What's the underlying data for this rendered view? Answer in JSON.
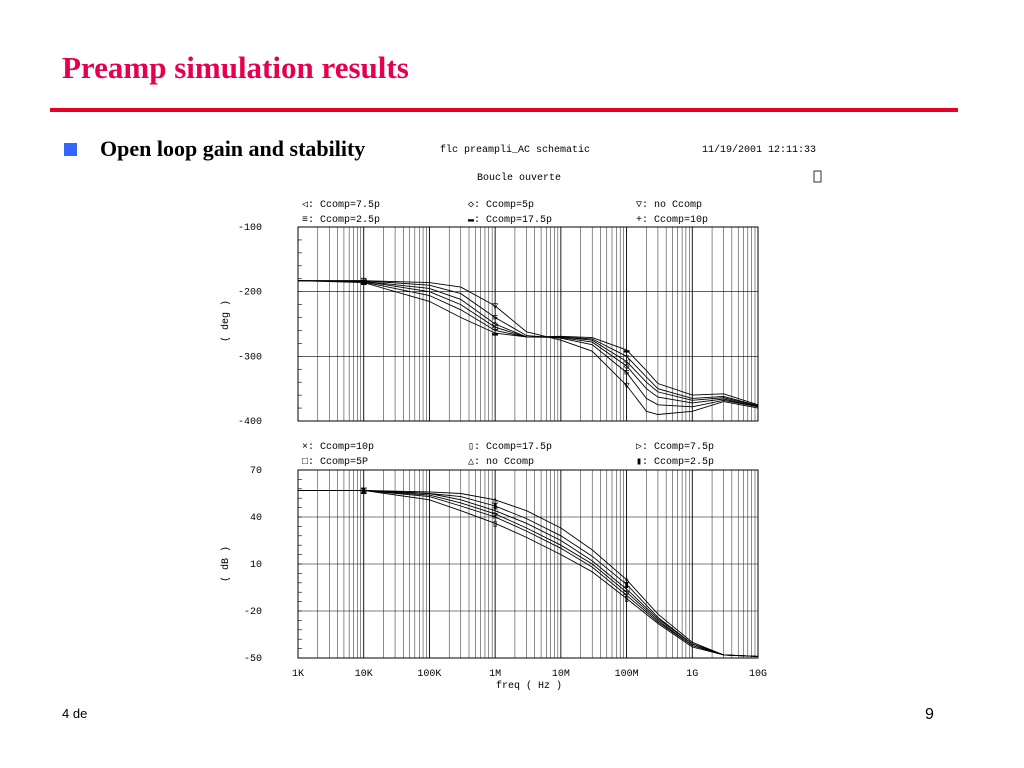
{
  "slide": {
    "title": "Preamp simulation results",
    "bullet": "Open loop gain and stability",
    "footer_left": "4 de",
    "page_number": "9"
  },
  "colors": {
    "title": "#e6004c",
    "rule": "#e60026",
    "bullet": "#3366ff"
  },
  "chart_data": [
    {
      "type": "line",
      "header_left": "flc preampli_AC schematic",
      "header_right": "11/19/2001 12:11:33",
      "subtitle": "Boucle ouverte",
      "ylabel": "( deg )",
      "xlabel": "",
      "xscale": "log",
      "xlim": [
        1000,
        10000000000
      ],
      "ylim": [
        -400,
        -100
      ],
      "yticks": [
        -100,
        -200,
        -300,
        -400
      ],
      "legend": [
        {
          "marker": "◁",
          "label": "Ccomp=7.5p"
        },
        {
          "marker": "◇",
          "label": "Ccomp=5p"
        },
        {
          "marker": "▽",
          "label": "no Ccomp"
        },
        {
          "marker": "≡",
          "label": "Ccomp=2.5p"
        },
        {
          "marker": "▬",
          "label": "Ccomp=17.5p"
        },
        {
          "marker": "+",
          "label": "Ccomp=10p"
        }
      ],
      "series": [
        {
          "name": "no Ccomp",
          "x": [
            1000,
            10000,
            100000,
            300000,
            1000000,
            3000000,
            10000000,
            30000000,
            100000000,
            200000000,
            300000000,
            1000000000,
            3000000000,
            10000000000
          ],
          "y": [
            -183,
            -183,
            -186,
            -193,
            -222,
            -262,
            -275,
            -292,
            -345,
            -385,
            -390,
            -385,
            -370,
            -380
          ]
        },
        {
          "name": "Ccomp=2.5p",
          "x": [
            1000,
            10000,
            100000,
            300000,
            1000000,
            3000000,
            10000000,
            30000000,
            100000000,
            200000000,
            300000000,
            1000000000,
            3000000000,
            10000000000
          ],
          "y": [
            -183,
            -183,
            -190,
            -203,
            -240,
            -268,
            -272,
            -282,
            -325,
            -365,
            -375,
            -378,
            -368,
            -378
          ]
        },
        {
          "name": "Ccomp=5p",
          "x": [
            1000,
            10000,
            100000,
            300000,
            1000000,
            3000000,
            10000000,
            30000000,
            100000000,
            200000000,
            300000000,
            1000000000,
            3000000000,
            10000000000
          ],
          "y": [
            -183,
            -184,
            -195,
            -212,
            -250,
            -270,
            -271,
            -278,
            -315,
            -350,
            -363,
            -372,
            -366,
            -378
          ]
        },
        {
          "name": "Ccomp=7.5p",
          "x": [
            1000,
            10000,
            100000,
            300000,
            1000000,
            3000000,
            10000000,
            30000000,
            100000000,
            200000000,
            300000000,
            1000000000,
            3000000000,
            10000000000
          ],
          "y": [
            -183,
            -184,
            -200,
            -220,
            -255,
            -270,
            -270,
            -275,
            -308,
            -340,
            -355,
            -368,
            -364,
            -377
          ]
        },
        {
          "name": "Ccomp=10p",
          "x": [
            1000,
            10000,
            100000,
            300000,
            1000000,
            3000000,
            10000000,
            30000000,
            100000000,
            200000000,
            300000000,
            1000000000,
            3000000000,
            10000000000
          ],
          "y": [
            -183,
            -185,
            -206,
            -228,
            -260,
            -270,
            -270,
            -273,
            -300,
            -332,
            -350,
            -365,
            -362,
            -376
          ]
        },
        {
          "name": "Ccomp=17.5p",
          "x": [
            1000,
            10000,
            100000,
            300000,
            1000000,
            3000000,
            10000000,
            30000000,
            100000000,
            200000000,
            300000000,
            1000000000,
            3000000000,
            10000000000
          ],
          "y": [
            -183,
            -186,
            -215,
            -240,
            -264,
            -270,
            -269,
            -271,
            -290,
            -322,
            -342,
            -360,
            -358,
            -375
          ]
        }
      ]
    },
    {
      "type": "line",
      "ylabel": "( dB )",
      "xlabel": "freq ( Hz )",
      "xscale": "log",
      "xlim": [
        1000,
        10000000000
      ],
      "ylim": [
        -50,
        70
      ],
      "yticks": [
        70,
        40,
        10,
        -20,
        -50
      ],
      "xtick_labels": [
        "1K",
        "10K",
        "100K",
        "1M",
        "10M",
        "100M",
        "1G",
        "10G"
      ],
      "legend": [
        {
          "marker": "×",
          "label": "Ccomp=10p"
        },
        {
          "marker": "▯",
          "label": "Ccomp=17.5p"
        },
        {
          "marker": "▷",
          "label": "Ccomp=7.5p"
        },
        {
          "marker": "□",
          "label": "Ccomp=5P"
        },
        {
          "marker": "△",
          "label": "no Ccomp"
        },
        {
          "marker": "▮",
          "label": "Ccomp=2.5p"
        }
      ],
      "series": [
        {
          "name": "no Ccomp",
          "x": [
            1000,
            10000,
            100000,
            300000,
            1000000,
            3000000,
            10000000,
            30000000,
            100000000,
            300000000,
            1000000000,
            3000000000,
            10000000000
          ],
          "y": [
            57,
            57,
            56,
            55,
            51,
            44,
            33,
            19,
            0,
            -22,
            -40,
            -48,
            -49
          ]
        },
        {
          "name": "Ccomp=2.5p",
          "x": [
            1000,
            10000,
            100000,
            300000,
            1000000,
            3000000,
            10000000,
            30000000,
            100000000,
            300000000,
            1000000000,
            3000000000,
            10000000000
          ],
          "y": [
            57,
            57,
            55,
            53,
            47,
            39,
            28,
            15,
            -3,
            -24,
            -41,
            -48,
            -49
          ]
        },
        {
          "name": "Ccomp=5p",
          "x": [
            1000,
            10000,
            100000,
            300000,
            1000000,
            3000000,
            10000000,
            30000000,
            100000000,
            300000000,
            1000000000,
            3000000000,
            10000000000
          ],
          "y": [
            57,
            57,
            55,
            51,
            44,
            36,
            25,
            12,
            -6,
            -25,
            -41,
            -48,
            -49
          ]
        },
        {
          "name": "Ccomp=7.5p",
          "x": [
            1000,
            10000,
            100000,
            300000,
            1000000,
            3000000,
            10000000,
            30000000,
            100000000,
            300000000,
            1000000000,
            3000000000,
            10000000000
          ],
          "y": [
            57,
            57,
            54,
            49,
            42,
            33,
            22,
            10,
            -8,
            -26,
            -42,
            -48,
            -49
          ]
        },
        {
          "name": "Ccomp=10p",
          "x": [
            1000,
            10000,
            100000,
            300000,
            1000000,
            3000000,
            10000000,
            30000000,
            100000000,
            300000000,
            1000000000,
            3000000000,
            10000000000
          ],
          "y": [
            57,
            57,
            53,
            47,
            40,
            31,
            20,
            8,
            -10,
            -27,
            -42,
            -48,
            -49
          ]
        },
        {
          "name": "Ccomp=17.5p",
          "x": [
            1000,
            10000,
            100000,
            300000,
            1000000,
            3000000,
            10000000,
            30000000,
            100000000,
            300000000,
            1000000000,
            3000000000,
            10000000000
          ],
          "y": [
            57,
            57,
            51,
            44,
            36,
            27,
            16,
            5,
            -12,
            -28,
            -43,
            -48,
            -49
          ]
        }
      ]
    }
  ]
}
